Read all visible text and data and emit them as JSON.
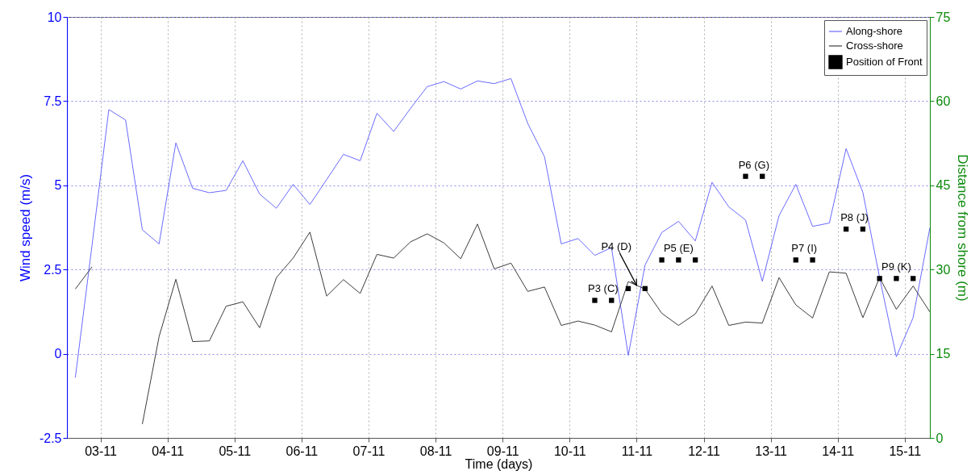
{
  "chart_data": {
    "type": "line",
    "xlabel": "Time (days)",
    "ylabel": "Wind speed (m/s)",
    "y2label": "Distance from shore (m)",
    "x": [
      "--11-02T15:00",
      "--11-02T21:00",
      "--11-03T03:00",
      "--11-03T09:00",
      "--11-03T15:00",
      "--11-03T21:00",
      "--11-04T03:00",
      "--11-04T09:00",
      "--11-04T15:00",
      "--11-04T21:00",
      "--11-05T03:00",
      "--11-05T09:00",
      "--11-05T15:00",
      "--11-05T21:00",
      "--11-06T03:00",
      "--11-06T09:00",
      "--11-06T15:00",
      "--11-06T21:00",
      "--11-07T03:00",
      "--11-07T09:00",
      "--11-07T15:00",
      "--11-07T21:00",
      "--11-08T03:00",
      "--11-08T09:00",
      "--11-08T15:00",
      "--11-08T21:00",
      "--11-09T03:00",
      "--11-09T09:00",
      "--11-09T15:00",
      "--11-09T21:00",
      "--11-10T03:00",
      "--11-10T09:00",
      "--11-10T15:00",
      "--11-10T21:00",
      "--11-11T03:00",
      "--11-11T09:00",
      "--11-11T15:00",
      "--11-11T21:00",
      "--11-12T03:00",
      "--11-12T09:00",
      "--11-12T15:00",
      "--11-12T21:00",
      "--11-13T03:00",
      "--11-13T09:00",
      "--11-13T15:00",
      "--11-13T21:00",
      "--11-14T03:00",
      "--11-14T09:00",
      "--11-14T15:00",
      "--11-14T21:00",
      "--11-15T03:00",
      "--11-15T09:00"
    ],
    "series": [
      {
        "name": "Along-shore",
        "color": "#6a6aff",
        "values": [
          -0.71,
          3.23,
          7.25,
          6.94,
          3.68,
          3.26,
          6.26,
          4.91,
          4.78,
          4.85,
          5.73,
          4.74,
          4.32,
          5.03,
          4.43,
          5.17,
          5.92,
          5.73,
          7.14,
          6.6,
          7.28,
          7.93,
          8.08,
          7.86,
          8.1,
          8.02,
          8.17,
          6.84,
          5.85,
          3.26,
          3.42,
          2.92,
          3.15,
          -0.05,
          2.63,
          3.6,
          3.93,
          3.35,
          5.09,
          4.36,
          3.97,
          2.15,
          4.1,
          5.03,
          3.78,
          3.88,
          6.09,
          4.79,
          2.26,
          -0.09,
          1.07,
          3.74
        ]
      },
      {
        "name": "Cross-shore",
        "color": "#3c3c3c",
        "values": [
          1.92,
          2.58,
          null,
          null,
          -2.09,
          0.51,
          2.21,
          0.36,
          0.38,
          1.41,
          1.54,
          0.77,
          2.26,
          2.84,
          3.61,
          1.71,
          2.2,
          1.79,
          2.95,
          2.84,
          3.32,
          3.56,
          3.29,
          2.82,
          3.85,
          2.52,
          2.69,
          1.85,
          1.98,
          0.84,
          0.97,
          0.85,
          0.65,
          2.14,
          1.92,
          1.2,
          0.84,
          1.18,
          2.01,
          0.84,
          0.94,
          0.91,
          2.26,
          1.45,
          1.06,
          2.43,
          2.39,
          1.07,
          2.26,
          1.32,
          2.01,
          1.24
        ]
      },
      {
        "name": "Position of Front",
        "type": "scatter",
        "axis": "y2",
        "marker": "square",
        "color": "#000000",
        "x": [
          "--11-10T09:00",
          "--11-10T15:00",
          "--11-10T21:00",
          "--11-11T03:00",
          "--11-11T09:00",
          "--11-11T15:00",
          "--11-11T21:00",
          "--11-12T15:00",
          "--11-12T21:00",
          "--11-13T09:00",
          "--11-13T15:00",
          "--11-14T03:00",
          "--11-14T09:00",
          "--11-14T15:00",
          "--11-14T21:00",
          "--11-15T03:00"
        ],
        "values": [
          24.5,
          24.5,
          26.6,
          26.6,
          31.7,
          31.7,
          31.7,
          46.6,
          46.6,
          31.7,
          31.7,
          37.2,
          37.2,
          28.4,
          28.4,
          28.4
        ]
      }
    ],
    "xlim": [
      "--11-02T12:00",
      "--11-15T09:00"
    ],
    "xticks": [
      {
        "value": "--11-03",
        "label": "03-11"
      },
      {
        "value": "--11-04",
        "label": "04-11"
      },
      {
        "value": "--11-05",
        "label": "05-11"
      },
      {
        "value": "--11-06",
        "label": "06-11"
      },
      {
        "value": "--11-07",
        "label": "07-11"
      },
      {
        "value": "--11-08",
        "label": "08-11"
      },
      {
        "value": "--11-09",
        "label": "09-11"
      },
      {
        "value": "--11-10",
        "label": "10-11"
      },
      {
        "value": "--11-11",
        "label": "11-11"
      },
      {
        "value": "--11-12",
        "label": "12-11"
      },
      {
        "value": "--11-13",
        "label": "13-11"
      },
      {
        "value": "--11-14",
        "label": "14-11"
      },
      {
        "value": "--11-15",
        "label": "15-11"
      }
    ],
    "ylim": [
      -2.5,
      10
    ],
    "yticks": [
      -2.5,
      0,
      2.5,
      5,
      7.5,
      10
    ],
    "y2lim": [
      0,
      75
    ],
    "y2ticks": [
      0,
      15,
      30,
      45,
      60,
      75
    ],
    "annotations": [
      "P3 (C)",
      "P4 (D)",
      "P5 (E)",
      "P6 (G)",
      "P7 (I)",
      "P8 (J)",
      "P9 (K)"
    ],
    "grid": true,
    "legend": "top right"
  }
}
